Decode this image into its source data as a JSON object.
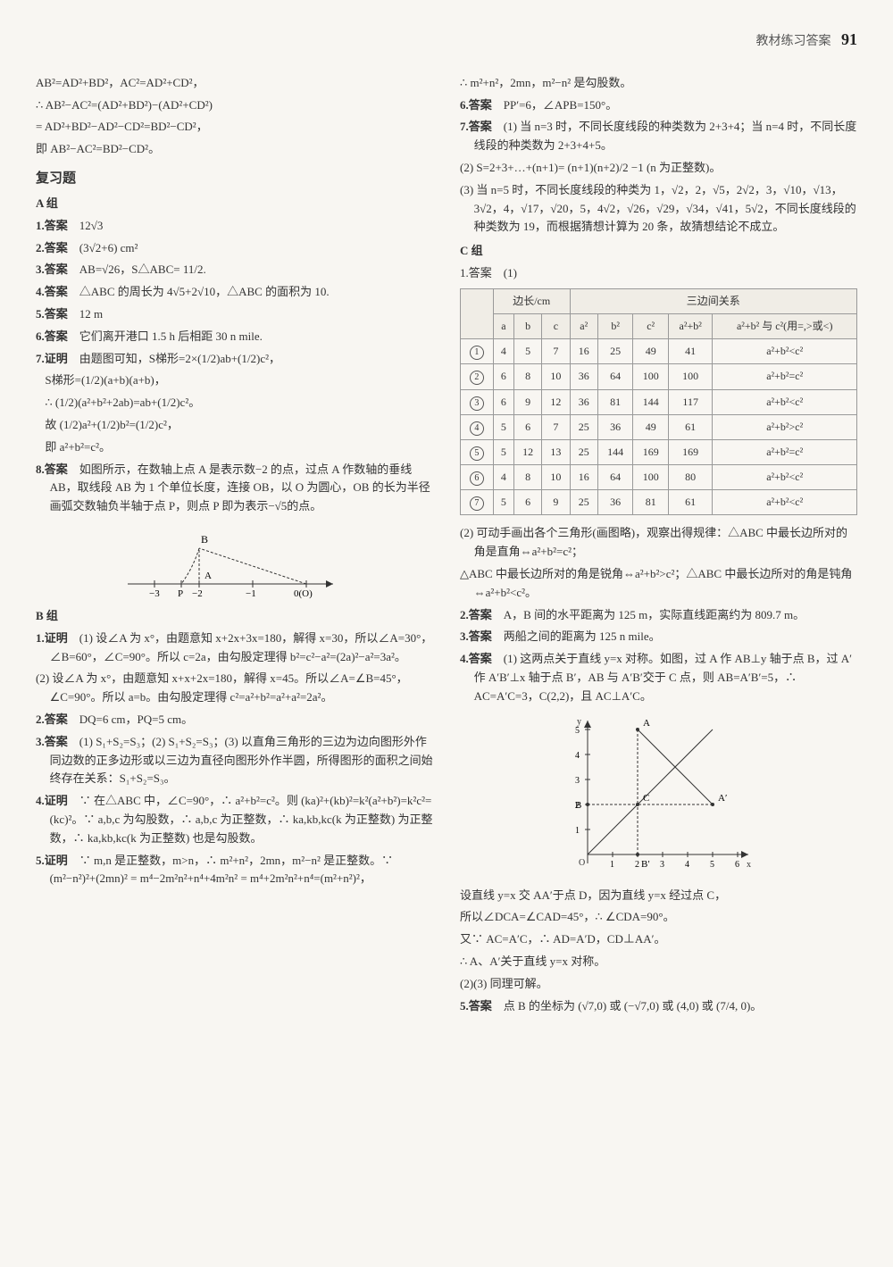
{
  "header": {
    "label": "教材练习答案",
    "page": "91"
  },
  "left": {
    "intro": [
      "AB²=AD²+BD²，AC²=AD²+CD²，",
      "∴ AB²−AC²=(AD²+BD²)−(AD²+CD²)",
      "= AD²+BD²−AD²−CD²=BD²−CD²，",
      "即 AB²−AC²=BD²−CD²。"
    ],
    "fuxiti": "复习题",
    "groupA": "A 组",
    "a": [
      {
        "n": "1.答案",
        "t": "12√3"
      },
      {
        "n": "2.答案",
        "t": "(3√2+6) cm²"
      },
      {
        "n": "3.答案",
        "t": "AB=√26，S△ABC= 11/2."
      },
      {
        "n": "4.答案",
        "t": "△ABC 的周长为 4√5+2√10，△ABC 的面积为 10."
      },
      {
        "n": "5.答案",
        "t": "12 m"
      },
      {
        "n": "6.答案",
        "t": "它们离开港口 1.5 h 后相距 30 n mile."
      },
      {
        "n": "7.证明",
        "t": "由题图可知，S梯形=2×(1/2)ab+(1/2)c²，"
      }
    ],
    "a7_lines": [
      "S梯形=(1/2)(a+b)(a+b)，",
      "∴ (1/2)(a²+b²+2ab)=ab+(1/2)c²。",
      "故 (1/2)a²+(1/2)b²=(1/2)c²，",
      "即 a²+b²=c²。"
    ],
    "a8": {
      "n": "8.答案",
      "t": "如图所示，在数轴上点 A 是表示数−2 的点，过点 A 作数轴的垂线 AB，取线段 AB 为 1 个单位长度，连接 OB，以 O 为圆心，OB 的长为半径画弧交数轴负半轴于点 P，则点 P 即为表示−√5的点。"
    },
    "numberline": {
      "ticks": [
        "−3",
        "P",
        "−2",
        "−1",
        "0(O)"
      ],
      "B_label": "B",
      "A_label": "A"
    },
    "groupB": "B 组",
    "b": [
      {
        "n": "1.证明",
        "t": "(1) 设∠A 为 x°，由题意知 x+2x+3x=180，解得 x=30，所以∠A=30°，∠B=60°，∠C=90°。所以 c=2a，由勾股定理得 b²=c²−a²=(2a)²−a²=3a²。"
      },
      {
        "n": "",
        "t": "(2) 设∠A 为 x°，由题意知 x+x+2x=180，解得 x=45。所以∠A=∠B=45°，∠C=90°。所以 a=b。由勾股定理得 c²=a²+b²=a²+a²=2a²。"
      },
      {
        "n": "2.答案",
        "t": "DQ=6 cm，PQ=5 cm。"
      },
      {
        "n": "3.答案",
        "t": "(1) S₁+S₂=S₃；(2) S₁+S₂=S₃；(3) 以直角三角形的三边为边向图形外作同边数的正多边形或以三边为直径向图形外作半圆，所得图形的面积之间始终存在关系：S₁+S₂=S₃。"
      },
      {
        "n": "4.证明",
        "t": "∵ 在△ABC 中，∠C=90°，∴ a²+b²=c²。则 (ka)²+(kb)²=k²(a²+b²)=k²c²=(kc)²。∵ a,b,c 为勾股数，∴ a,b,c 为正整数，∴ ka,kb,kc(k 为正整数) 为正整数，∴ ka,kb,kc(k 为正整数) 也是勾股数。"
      },
      {
        "n": "5.证明",
        "t": "∵ m,n 是正整数，m>n，∴ m²+n²，2mn，m²−n² 是正整数。∵ (m²−n²)²+(2mn)² = m⁴−2m²n²+n⁴+4m²n² = m⁴+2m²n²+n⁴=(m²+n²)²，"
      }
    ]
  },
  "right": {
    "top": [
      "∴ m²+n²，2mn，m²−n² 是勾股数。"
    ],
    "r_items": [
      {
        "n": "6.答案",
        "t": "PP′=6，∠APB=150°。"
      },
      {
        "n": "7.答案",
        "t": "(1) 当 n=3 时，不同长度线段的种类数为 2+3+4；当 n=4 时，不同长度线段的种类数为 2+3+4+5。"
      },
      {
        "n": "",
        "t": "(2) S=2+3+…+(n+1)= (n+1)(n+2)/2 −1 (n 为正整数)。"
      },
      {
        "n": "",
        "t": "(3) 当 n=5 时，不同长度线段的种类为 1，√2，2，√5，2√2，3，√10，√13，3√2，4，√17，√20，5，4√2，√26，√29，√34，√41，5√2，不同长度线段的种类数为 19，而根据猜想计算为 20 条，故猜想结论不成立。"
      }
    ],
    "groupC": "C 组",
    "c1_label": "1.答案　(1)",
    "table": {
      "head_group1": "边长/cm",
      "head_group2": "三边间关系",
      "cols": [
        "",
        "a",
        "b",
        "c",
        "a²",
        "b²",
        "c²",
        "a²+b²",
        "a²+b² 与 c²(用=,>或<)"
      ],
      "rows": [
        [
          "①",
          "4",
          "5",
          "7",
          "16",
          "25",
          "49",
          "41",
          "a²+b²<c²"
        ],
        [
          "②",
          "6",
          "8",
          "10",
          "36",
          "64",
          "100",
          "100",
          "a²+b²=c²"
        ],
        [
          "③",
          "6",
          "9",
          "12",
          "36",
          "81",
          "144",
          "117",
          "a²+b²<c²"
        ],
        [
          "④",
          "5",
          "6",
          "7",
          "25",
          "36",
          "49",
          "61",
          "a²+b²>c²"
        ],
        [
          "⑤",
          "5",
          "12",
          "13",
          "25",
          "144",
          "169",
          "169",
          "a²+b²=c²"
        ],
        [
          "⑥",
          "4",
          "8",
          "10",
          "16",
          "64",
          "100",
          "80",
          "a²+b²<c²"
        ],
        [
          "⑦",
          "5",
          "6",
          "9",
          "25",
          "36",
          "81",
          "61",
          "a²+b²<c²"
        ]
      ]
    },
    "c1_after": [
      "(2) 可动手画出各个三角形(画图略)，观察出得规律：△ABC 中最长边所对的角是直角⇔a²+b²=c²；",
      "△ABC 中最长边所对的角是锐角⇔a²+b²>c²；△ABC 中最长边所对的角是钝角⇔a²+b²<c²。"
    ],
    "c_more": [
      {
        "n": "2.答案",
        "t": "A，B 间的水平距离为 125 m，实际直线距离约为 809.7 m。"
      },
      {
        "n": "3.答案",
        "t": "两船之间的距离为 125 n mile。"
      },
      {
        "n": "4.答案",
        "t": "(1) 这两点关于直线 y=x 对称。如图，过 A 作 AB⊥y 轴于点 B，过 A′作 A′B′⊥x 轴于点 B′，AB 与 A′B′交于 C 点，则 AB=A′B′=5，∴ AC=A′C=3，C(2,2)，且 AC⊥A′C。"
      }
    ],
    "graph": {
      "xmax": 6,
      "ymax": 5,
      "x_ticks": [
        "1",
        "2",
        "3",
        "4",
        "5",
        "6"
      ],
      "y_ticks": [
        "1",
        "2",
        "3",
        "4",
        "5"
      ],
      "labels": {
        "O": "O",
        "x": "x",
        "y": "y",
        "A": "A",
        "Ap": "A′",
        "B": "B",
        "Bp": "B′",
        "C": "C"
      },
      "A": [
        2,
        5
      ],
      "Ap": [
        5,
        2
      ],
      "C": [
        2,
        2
      ],
      "B": [
        0,
        2
      ],
      "Bp": [
        2,
        0
      ]
    },
    "c4_after": [
      "设直线 y=x 交 AA′于点 D，因为直线 y=x 经过点 C，",
      "所以∠DCA=∠CAD=45°，∴ ∠CDA=90°。",
      "又∵ AC=A′C，∴ AD=A′D，CD⊥AA′。",
      "∴ A、A′关于直线 y=x 对称。",
      "(2)(3) 同理可解。"
    ],
    "c5": {
      "n": "5.答案",
      "t": "点 B 的坐标为 (√7,0) 或 (−√7,0) 或 (4,0) 或 (7/4, 0)。"
    }
  }
}
